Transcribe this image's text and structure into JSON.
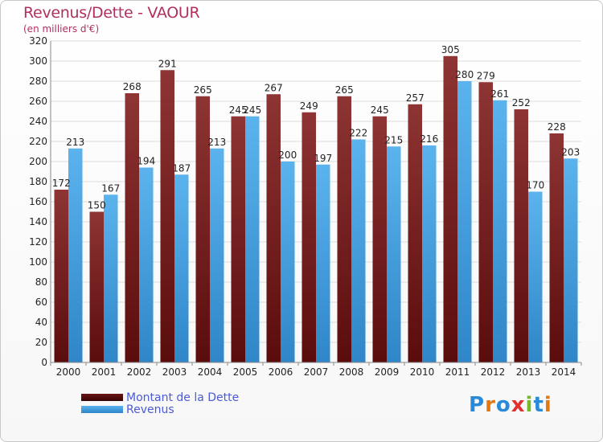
{
  "header": {
    "title": "Revenus/Dette - VAOUR",
    "subtitle": "(en milliers d'€)"
  },
  "legend": {
    "debt_label": "Montant de la Dette",
    "revenue_label": "Revenus"
  },
  "logo": {
    "text": "Proxiti",
    "colors": [
      "#2a8ad8",
      "#e07a10",
      "#2a8ad8",
      "#e03030",
      "#78b828",
      "#2a8ad8",
      "#e07a10"
    ]
  },
  "colors": {
    "debt": "#8b2a2a",
    "revenue": "#4aa3e2",
    "title": "#b03060"
  },
  "chart_data": {
    "type": "bar",
    "categories": [
      "2000",
      "2001",
      "2002",
      "2003",
      "2004",
      "2005",
      "2006",
      "2007",
      "2008",
      "2009",
      "2010",
      "2011",
      "2012",
      "2013",
      "2014"
    ],
    "series": [
      {
        "name": "Montant de la Dette",
        "values": [
          172,
          150,
          268,
          291,
          265,
          245,
          267,
          249,
          265,
          245,
          257,
          305,
          279,
          252,
          228
        ]
      },
      {
        "name": "Revenus",
        "values": [
          213,
          167,
          194,
          187,
          213,
          245,
          200,
          197,
          222,
          215,
          216,
          280,
          261,
          170,
          203
        ]
      }
    ],
    "ylim": [
      0,
      320
    ],
    "ytick_step": 20,
    "grid": true
  }
}
